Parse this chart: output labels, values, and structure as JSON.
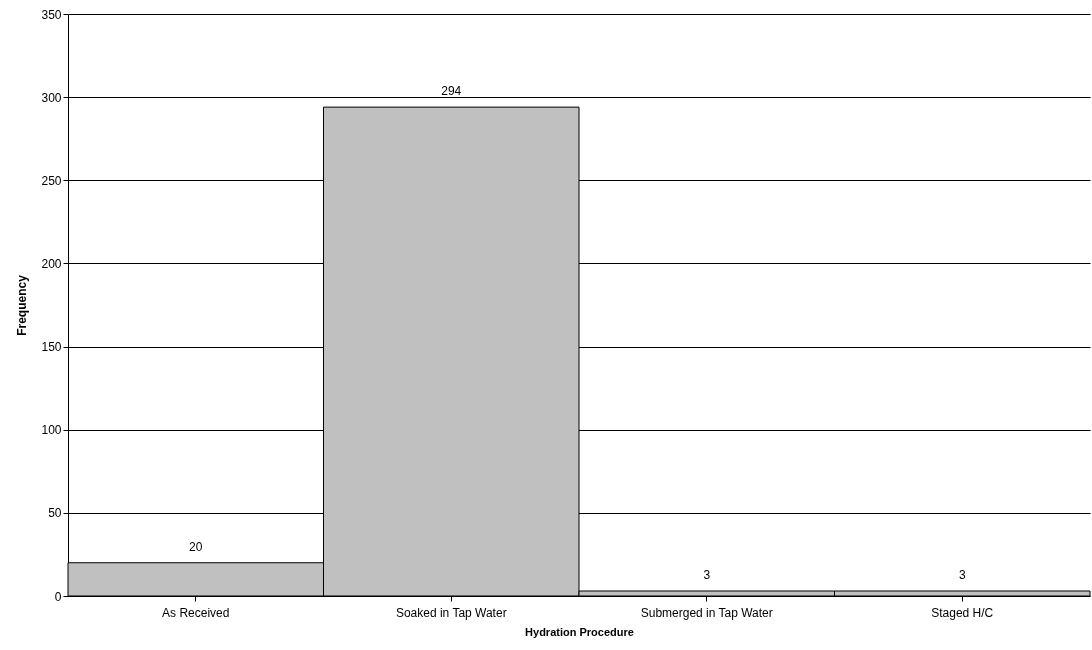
{
  "chart_data": {
    "type": "bar",
    "xlabel": "Hydration Procedure",
    "ylabel": "Frequency",
    "categories": [
      "As Received",
      "Soaked in Tap Water",
      "Submerged in Tap Water",
      "Staged H/C"
    ],
    "values": [
      20,
      294,
      3,
      3
    ],
    "color": "#c0c0c0",
    "ylim": [
      0,
      350
    ],
    "yticks": [
      0,
      50,
      100,
      150,
      200,
      250,
      300,
      350
    ],
    "grid": "y",
    "data_labels": true
  }
}
